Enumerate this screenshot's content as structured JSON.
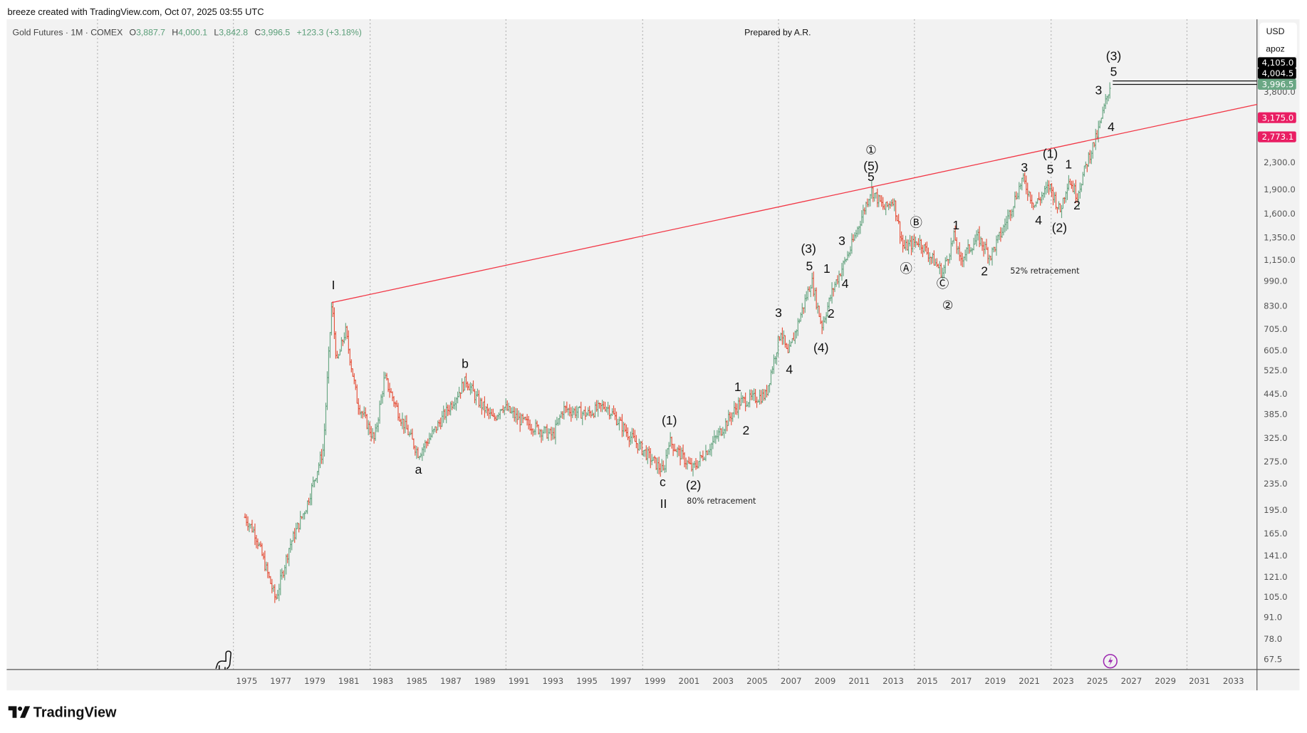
{
  "header": {
    "attribution": "breeze created with TradingView.com, Oct 07, 2025 03:55 UTC"
  },
  "legend": {
    "symbol": "Gold Futures · 1M · COMEX",
    "open_label": "O",
    "open": "3,887.7",
    "high_label": "H",
    "high": "4,000.1",
    "low_label": "L",
    "low": "3,842.8",
    "close_label": "C",
    "close": "3,996.5",
    "change": "+123.3 (+3.18%)"
  },
  "annotation_title": "Prepared by A.R.",
  "currency": {
    "currency": "USD",
    "unit": "apoz"
  },
  "price_badges": [
    {
      "value": "4,105.0",
      "color": "#000000"
    },
    {
      "value": "4,004.5",
      "color": "#000000"
    },
    {
      "value": "3,996.5",
      "color": "#6aa784"
    },
    {
      "value": "3,175.0",
      "color": "#e91e63"
    },
    {
      "value": "2,773.1",
      "color": "#e91e63"
    }
  ],
  "price_axis": [
    "3,800.0",
    "2,300.0",
    "1,900.0",
    "1,600.0",
    "1,350.0",
    "1,150.0",
    "990.0",
    "830.0",
    "705.0",
    "605.0",
    "525.0",
    "445.0",
    "385.0",
    "325.0",
    "275.0",
    "235.0",
    "195.0",
    "165.0",
    "141.0",
    "121.0",
    "105.0",
    "91.0",
    "78.0",
    "67.5"
  ],
  "time_axis": [
    "1975",
    "1977",
    "1979",
    "1981",
    "1983",
    "1985",
    "1987",
    "1989",
    "1991",
    "1993",
    "1995",
    "1997",
    "1999",
    "2001",
    "2003",
    "2005",
    "2007",
    "2009",
    "2011",
    "2013",
    "2015",
    "2017",
    "2019",
    "2021",
    "2023",
    "2025",
    "2027",
    "2029",
    "2031",
    "2033"
  ],
  "colors": {
    "up": "#6aa784",
    "down": "#e5533d",
    "trendline": "#f23645",
    "pane": "#f2f2f2"
  },
  "chart_data": {
    "type": "ohlc",
    "title": "Gold Futures · 1M · COMEX",
    "yscale": "log",
    "ylim": [
      62,
      4700
    ],
    "xlim": [
      1969.1,
      2034.4
    ],
    "price_path": [
      [
        1974.9,
        185
      ],
      [
        1975.5,
        165
      ],
      [
        1976.7,
        103
      ],
      [
        1977.5,
        150
      ],
      [
        1978.5,
        200
      ],
      [
        1979.5,
        300
      ],
      [
        1980.0,
        850
      ],
      [
        1980.3,
        550
      ],
      [
        1980.8,
        700
      ],
      [
        1981.5,
        420
      ],
      [
        1982.5,
        320
      ],
      [
        1983.1,
        500
      ],
      [
        1984.0,
        380
      ],
      [
        1985.1,
        290
      ],
      [
        1986.0,
        340
      ],
      [
        1987.9,
        490
      ],
      [
        1988.5,
        430
      ],
      [
        1989.5,
        370
      ],
      [
        1990.0,
        410
      ],
      [
        1991.0,
        370
      ],
      [
        1993.0,
        330
      ],
      [
        1993.6,
        400
      ],
      [
        1995.0,
        385
      ],
      [
        1996.1,
        410
      ],
      [
        1997.5,
        330
      ],
      [
        1998.5,
        290
      ],
      [
        1999.5,
        255
      ],
      [
        1999.8,
        320
      ],
      [
        2001.2,
        260
      ],
      [
        2002.5,
        320
      ],
      [
        2004.0,
        420
      ],
      [
        2005.5,
        440
      ],
      [
        2006.4,
        700
      ],
      [
        2006.8,
        580
      ],
      [
        2008.2,
        1000
      ],
      [
        2008.8,
        720
      ],
      [
        2009.5,
        950
      ],
      [
        2010.5,
        1250
      ],
      [
        2011.7,
        1900
      ],
      [
        2012.5,
        1650
      ],
      [
        2013.0,
        1780
      ],
      [
        2013.6,
        1250
      ],
      [
        2014.5,
        1320
      ],
      [
        2015.9,
        1050
      ],
      [
        2016.6,
        1370
      ],
      [
        2016.9,
        1150
      ],
      [
        2018.0,
        1350
      ],
      [
        2018.7,
        1180
      ],
      [
        2019.5,
        1450
      ],
      [
        2020.6,
        2050
      ],
      [
        2021.3,
        1700
      ],
      [
        2022.2,
        1950
      ],
      [
        2022.8,
        1620
      ],
      [
        2023.3,
        2050
      ],
      [
        2023.8,
        1820
      ],
      [
        2024.5,
        2400
      ],
      [
        2025.0,
        2800
      ],
      [
        2025.75,
        3996.5
      ]
    ],
    "trendline": [
      [
        1980.0,
        850
      ],
      [
        2034.4,
        3476
      ]
    ],
    "horizontal_levels": [
      4105.0,
      4004.5
    ],
    "wave_labels": [
      "I",
      "a",
      "b",
      "c",
      "II",
      "(1)",
      "(2)",
      "1",
      "2",
      "3",
      "4",
      "(3)",
      "5",
      "1",
      "2",
      "(4)",
      "3",
      "4",
      "①",
      "(5)",
      "5",
      "Ⓑ",
      "Ⓐ",
      "1",
      "Ⓒ",
      "②",
      "2",
      "3",
      "4",
      "(1)",
      "5",
      "(2)",
      "1",
      "2",
      "4",
      "3",
      "5",
      "(3)"
    ],
    "notes": [
      "80% retracement",
      "52% retracement"
    ]
  },
  "footer": {
    "brand": "TradingView"
  }
}
